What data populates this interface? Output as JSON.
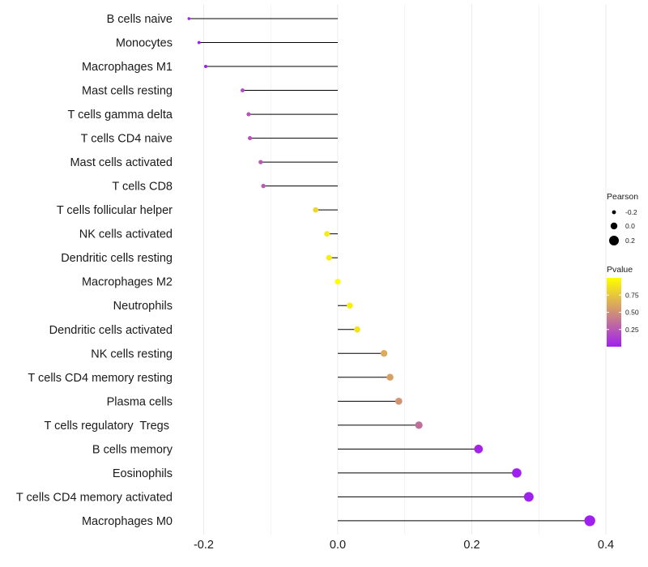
{
  "chart_data": {
    "type": "lollipop",
    "title": "",
    "xlabel": "",
    "ylabel": "",
    "xlim": [
      -0.232,
      0.4
    ],
    "x_ticks": [
      -0.2,
      0.0,
      0.2,
      0.4
    ],
    "x_tick_labels": [
      "-0.2",
      "0.0",
      "0.2",
      "0.4"
    ],
    "grid": true,
    "baseline": 0,
    "categories": [
      "B cells naive",
      "Monocytes",
      "Macrophages M1",
      "Mast cells resting",
      "T cells gamma delta",
      "T cells CD4 naive",
      "Mast cells activated",
      "T cells CD8",
      "T cells follicular helper",
      "NK cells activated",
      "Dendritic cells resting",
      "Macrophages M2",
      "Neutrophils",
      "Dendritic cells activated",
      "NK cells resting",
      "T cells CD4 memory resting",
      "Plasma cells",
      "T cells regulatory  Tregs ",
      "B cells memory",
      "Eosinophils",
      "T cells CD4 memory activated",
      "Macrophages M0"
    ],
    "series": [
      {
        "name": "Pearson",
        "values": [
          -0.222,
          -0.207,
          -0.197,
          -0.142,
          -0.133,
          -0.131,
          -0.115,
          -0.111,
          -0.033,
          -0.016,
          -0.013,
          0.0,
          0.018,
          0.029,
          0.069,
          0.078,
          0.091,
          0.121,
          0.21,
          0.267,
          0.285,
          0.376
        ]
      },
      {
        "name": "Pvalue",
        "values": [
          0.0,
          0.0,
          0.0,
          0.18,
          0.22,
          0.22,
          0.26,
          0.27,
          0.82,
          0.91,
          0.92,
          1.0,
          0.93,
          0.87,
          0.62,
          0.58,
          0.52,
          0.35,
          0.02,
          0.0,
          0.0,
          0.0
        ]
      }
    ],
    "legend": {
      "position": "right",
      "size_title": "Pearson",
      "size_entries": [
        {
          "label": "-0.2",
          "value": -0.2
        },
        {
          "label": "0.0",
          "value": 0.0
        },
        {
          "label": "0.2",
          "value": 0.2
        }
      ],
      "color_title": "Pvalue",
      "color_ticks": [
        {
          "label": "0.75",
          "value": 0.75
        },
        {
          "label": "0.50",
          "value": 0.5
        },
        {
          "label": "0.25",
          "value": 0.25
        }
      ],
      "color_range": [
        0.0,
        1.0
      ]
    },
    "colors": {
      "low": "#a020f0",
      "high": "#ffff00",
      "stem": "#000000",
      "grid": "#ebebeb",
      "text": "#1a1a1a"
    }
  }
}
